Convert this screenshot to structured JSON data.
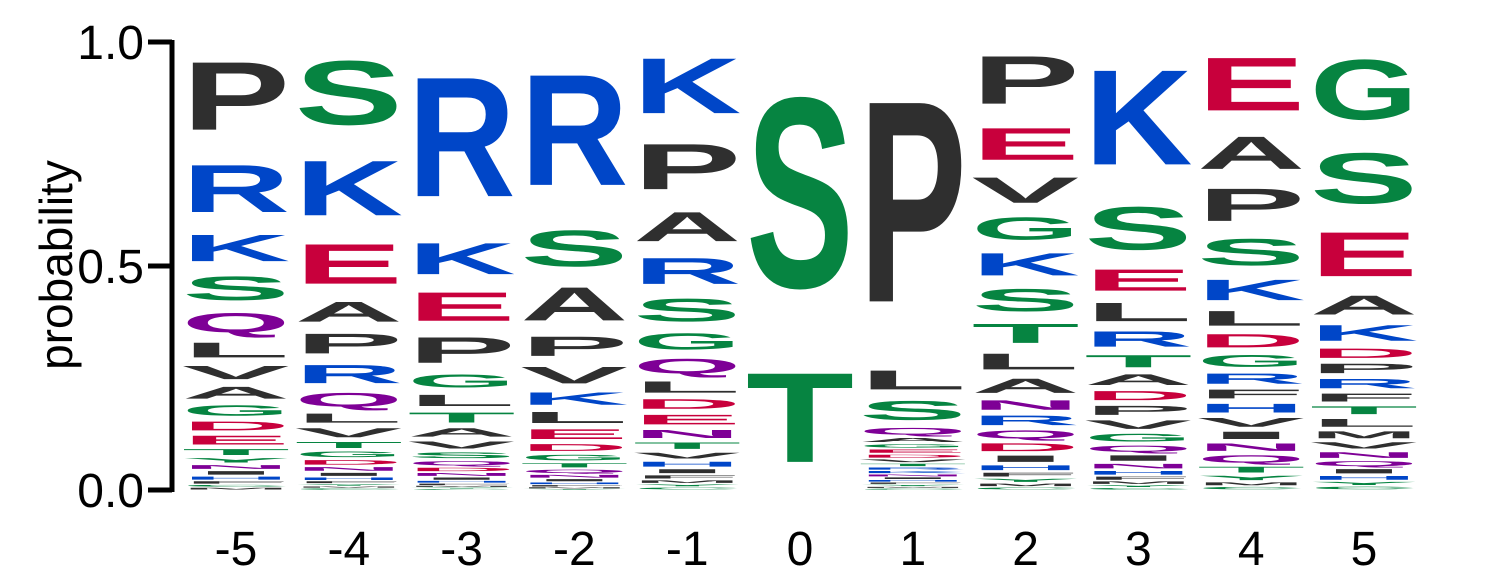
{
  "chart_data": {
    "type": "sequence-logo",
    "ylabel": "probability",
    "ylim": [
      0,
      1
    ],
    "yticks": [
      "0.0",
      "0.5",
      "1.0"
    ],
    "positions": [
      {
        "label": "-5",
        "letters": [
          [
            "P",
            0.23
          ],
          [
            "R",
            0.16
          ],
          [
            "K",
            0.09
          ],
          [
            "S",
            0.08
          ],
          [
            "Q",
            0.065
          ],
          [
            "L",
            0.05
          ],
          [
            "V",
            0.045
          ],
          [
            "A",
            0.04
          ],
          [
            "G",
            0.035
          ],
          [
            "D",
            0.03
          ],
          [
            "E",
            0.03
          ],
          [
            "T",
            0.02
          ],
          [
            "Y",
            0.015
          ],
          [
            "N",
            0.013
          ],
          [
            "I",
            0.012
          ],
          [
            "H",
            0.01
          ],
          [
            "F",
            0.008
          ],
          [
            "C",
            0.006
          ],
          [
            "M",
            0.006
          ]
        ]
      },
      {
        "label": "-4",
        "letters": [
          [
            "S",
            0.21
          ],
          [
            "K",
            0.18
          ],
          [
            "E",
            0.13
          ],
          [
            "A",
            0.065
          ],
          [
            "P",
            0.065
          ],
          [
            "R",
            0.06
          ],
          [
            "Q",
            0.045
          ],
          [
            "L",
            0.03
          ],
          [
            "V",
            0.03
          ],
          [
            "T",
            0.02
          ],
          [
            "G",
            0.018
          ],
          [
            "D",
            0.015
          ],
          [
            "N",
            0.012
          ],
          [
            "I",
            0.01
          ],
          [
            "H",
            0.008
          ],
          [
            "F",
            0.006
          ],
          [
            "Y",
            0.005
          ],
          [
            "M",
            0.004
          ],
          [
            "C",
            0.004
          ]
        ]
      },
      {
        "label": "-3",
        "letters": [
          [
            "R",
            0.42
          ],
          [
            "E",
            0.1
          ],
          [
            "K",
            0.11
          ],
          [
            "P",
            0.09
          ],
          [
            "G",
            0.045
          ],
          [
            "L",
            0.04
          ],
          [
            "T",
            0.035
          ],
          [
            "A",
            0.03
          ],
          [
            "V",
            0.025
          ],
          [
            "S",
            0.02
          ],
          [
            "Q",
            0.015
          ],
          [
            "D",
            0.012
          ],
          [
            "N",
            0.01
          ],
          [
            "I",
            0.008
          ],
          [
            "H",
            0.006
          ],
          [
            "F",
            0.005
          ],
          [
            "M",
            0.004
          ],
          [
            "Y",
            0.003
          ],
          [
            "C",
            0.003
          ]
        ]
      },
      {
        "label": "-2",
        "letters": [
          [
            "R",
            0.4
          ],
          [
            "A",
            0.12
          ],
          [
            "S",
            0.13
          ],
          [
            "P",
            0.07
          ],
          [
            "V",
            0.06
          ],
          [
            "K",
            0.045
          ],
          [
            "L",
            0.04
          ],
          [
            "E",
            0.035
          ],
          [
            "D",
            0.025
          ],
          [
            "G",
            0.02
          ],
          [
            "T",
            0.015
          ],
          [
            "Q",
            0.012
          ],
          [
            "N",
            0.01
          ],
          [
            "I",
            0.008
          ],
          [
            "H",
            0.006
          ],
          [
            "F",
            0.005
          ],
          [
            "M",
            0.004
          ],
          [
            "Y",
            0.003
          ]
        ]
      },
      {
        "label": "-1",
        "letters": [
          [
            "K",
            0.17
          ],
          [
            "P",
            0.14
          ],
          [
            "A",
            0.09
          ],
          [
            "R",
            0.08
          ],
          [
            "S",
            0.07
          ],
          [
            "G",
            0.05
          ],
          [
            "Q",
            0.045
          ],
          [
            "L",
            0.035
          ],
          [
            "D",
            0.03
          ],
          [
            "E",
            0.03
          ],
          [
            "N",
            0.025
          ],
          [
            "T",
            0.02
          ],
          [
            "V",
            0.018
          ],
          [
            "H",
            0.015
          ],
          [
            "I",
            0.012
          ],
          [
            "F",
            0.01
          ],
          [
            "M",
            0.008
          ],
          [
            "Y",
            0.006
          ],
          [
            "C",
            0.006
          ]
        ]
      },
      {
        "label": "0",
        "letters": [
          [
            "S",
            0.68
          ],
          [
            "T",
            0.32
          ]
        ]
      },
      {
        "label": "1",
        "letters": [
          [
            "P",
            0.74
          ],
          [
            "L",
            0.07
          ],
          [
            "S",
            0.07
          ],
          [
            "Q",
            0.025
          ],
          [
            "A",
            0.015
          ],
          [
            "G",
            0.012
          ],
          [
            "E",
            0.012
          ],
          [
            "D",
            0.011
          ],
          [
            "V",
            0.01
          ],
          [
            "T",
            0.009
          ],
          [
            "R",
            0.008
          ],
          [
            "K",
            0.008
          ],
          [
            "N",
            0.007
          ],
          [
            "I",
            0.006
          ],
          [
            "H",
            0.006
          ],
          [
            "F",
            0.005
          ],
          [
            "Y",
            0.005
          ],
          [
            "M",
            0.004
          ],
          [
            "C",
            0.004
          ]
        ]
      },
      {
        "label": "2",
        "letters": [
          [
            "P",
            0.15
          ],
          [
            "E",
            0.1
          ],
          [
            "G",
            0.07
          ],
          [
            "T",
            0.06
          ],
          [
            "V",
            0.08
          ],
          [
            "K",
            0.07
          ],
          [
            "S",
            0.07
          ],
          [
            "L",
            0.05
          ],
          [
            "A",
            0.045
          ],
          [
            "N",
            0.03
          ],
          [
            "R",
            0.03
          ],
          [
            "Q",
            0.025
          ],
          [
            "D",
            0.025
          ],
          [
            "I",
            0.02
          ],
          [
            "H",
            0.015
          ],
          [
            "F",
            0.012
          ],
          [
            "Y",
            0.01
          ],
          [
            "M",
            0.008
          ],
          [
            "C",
            0.006
          ]
        ]
      },
      {
        "label": "3",
        "letters": [
          [
            "K",
            0.31
          ],
          [
            "S",
            0.14
          ],
          [
            "E",
            0.07
          ],
          [
            "L",
            0.06
          ],
          [
            "R",
            0.05
          ],
          [
            "T",
            0.04
          ],
          [
            "A",
            0.035
          ],
          [
            "D",
            0.03
          ],
          [
            "P",
            0.03
          ],
          [
            "V",
            0.028
          ],
          [
            "G",
            0.025
          ],
          [
            "Q",
            0.02
          ],
          [
            "I",
            0.018
          ],
          [
            "N",
            0.015
          ],
          [
            "H",
            0.012
          ],
          [
            "F",
            0.01
          ],
          [
            "M",
            0.008
          ],
          [
            "Y",
            0.006
          ],
          [
            "C",
            0.005
          ]
        ]
      },
      {
        "label": "4",
        "letters": [
          [
            "E",
            0.18
          ],
          [
            "A",
            0.11
          ],
          [
            "P",
            0.11
          ],
          [
            "S",
            0.09
          ],
          [
            "K",
            0.07
          ],
          [
            "L",
            0.05
          ],
          [
            "D",
            0.045
          ],
          [
            "G",
            0.04
          ],
          [
            "R",
            0.035
          ],
          [
            "F",
            0.03
          ],
          [
            "H",
            0.03
          ],
          [
            "I",
            0.025
          ],
          [
            "V",
            0.03
          ],
          [
            "N",
            0.025
          ],
          [
            "Q",
            0.025
          ],
          [
            "T",
            0.02
          ],
          [
            "Y",
            0.015
          ],
          [
            "M",
            0.01
          ],
          [
            "C",
            0.008
          ]
        ]
      },
      {
        "label": "5",
        "letters": [
          [
            "G",
            0.19
          ],
          [
            "S",
            0.16
          ],
          [
            "E",
            0.14
          ],
          [
            "A",
            0.06
          ],
          [
            "K",
            0.05
          ],
          [
            "D",
            0.03
          ],
          [
            "F",
            0.025
          ],
          [
            "P",
            0.03
          ],
          [
            "R",
            0.03
          ],
          [
            "T",
            0.025
          ],
          [
            "L",
            0.025
          ],
          [
            "M",
            0.022
          ],
          [
            "V",
            0.02
          ],
          [
            "N",
            0.018
          ],
          [
            "Q",
            0.016
          ],
          [
            "I",
            0.014
          ],
          [
            "H",
            0.012
          ],
          [
            "Y",
            0.01
          ],
          [
            "C",
            0.008
          ]
        ]
      }
    ]
  },
  "letter_colors": {
    "A": "#2f2f2f",
    "P": "#2f2f2f",
    "L": "#2f2f2f",
    "V": "#2f2f2f",
    "I": "#2f2f2f",
    "M": "#2f2f2f",
    "F": "#2f2f2f",
    "W": "#2f2f2f",
    "R": "#0046c8",
    "K": "#0046c8",
    "H": "#0046c8",
    "D": "#c8003c",
    "E": "#c8003c",
    "S": "#068441",
    "T": "#068441",
    "G": "#068441",
    "Y": "#068441",
    "C": "#068441",
    "Q": "#7e0096",
    "N": "#7e0096"
  }
}
